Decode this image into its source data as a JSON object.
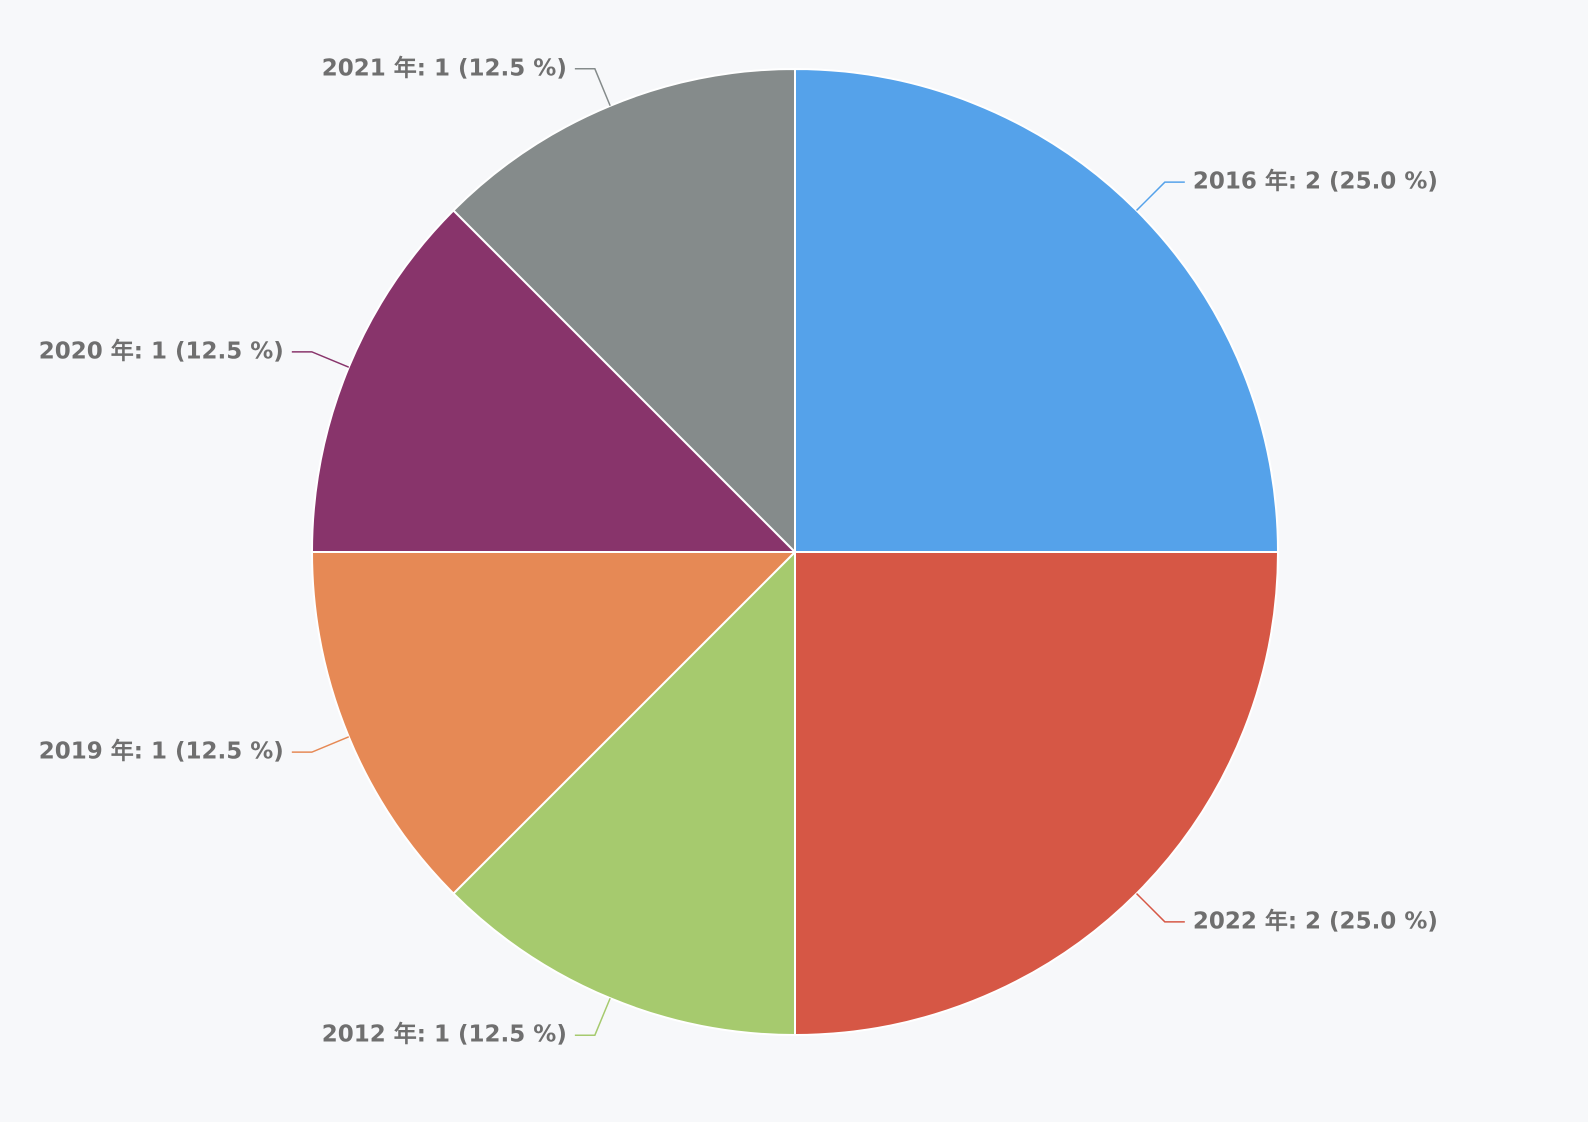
{
  "chart_data": {
    "type": "pie",
    "values": [
      2,
      2,
      1,
      1,
      1,
      1
    ],
    "value_labels": [
      "2016 年: 2 (25.0 %)",
      "2022 年: 2 (25.0 %)",
      "2012 年: 1 (12.5 %)",
      "2019 年: 1 (12.5 %)",
      "2020 年: 1 (12.5 %)",
      "2021 年: 1 (12.5 %)"
    ],
    "colors": [
      "#55a2ea",
      "#d65745",
      "#a6ca6e",
      "#e68955",
      "#88346b",
      "#858b8b"
    ]
  }
}
